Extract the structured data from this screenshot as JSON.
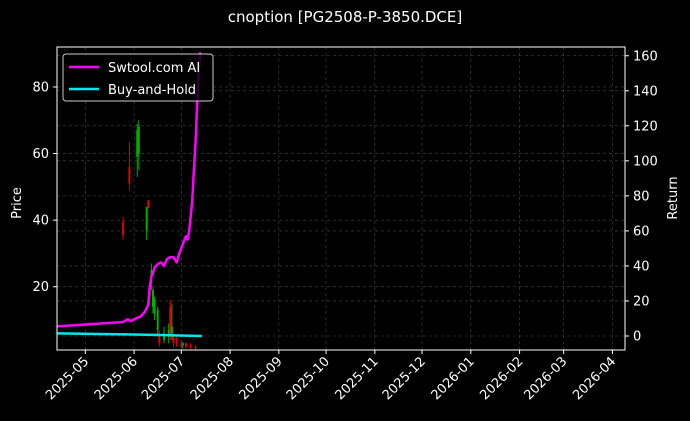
{
  "chart_data": {
    "type": "line",
    "title": "cnoption [PG2508-P-3850.DCE]",
    "ylabel": "Price",
    "y2label": "Return",
    "ylim": [
      1,
      92
    ],
    "y2lim": [
      -8,
      165
    ],
    "xlim": [
      "2025-04-13",
      "2026-04-09"
    ],
    "yticks": [
      20,
      40,
      60,
      80
    ],
    "y2ticks": [
      0,
      20,
      40,
      60,
      80,
      100,
      120,
      140,
      160
    ],
    "xticks": [
      "2025-05-01",
      "2025-06-01",
      "2025-07-01",
      "2025-08-01",
      "2025-09-01",
      "2025-10-01",
      "2025-11-01",
      "2025-12-01",
      "2026-01-01",
      "2026-02-01",
      "2026-03-01",
      "2026-04-01"
    ],
    "xtick_labels": [
      "2025-05",
      "2025-06",
      "2025-07",
      "2025-08",
      "2025-09",
      "2025-10",
      "2025-11",
      "2025-12",
      "2026-01",
      "2026-02",
      "2026-03",
      "2026-04"
    ],
    "grid": true,
    "legend_position": "top-left",
    "series": [
      {
        "name": "Swtool.com AI",
        "color": "#ff00ff",
        "axis": "right",
        "x": [
          "2025-04-13",
          "2025-05-25",
          "2025-05-28",
          "2025-05-30",
          "2025-06-02",
          "2025-06-05",
          "2025-06-08",
          "2025-06-10",
          "2025-06-11",
          "2025-06-12",
          "2025-06-13",
          "2025-06-14",
          "2025-06-16",
          "2025-06-18",
          "2025-06-20",
          "2025-06-22",
          "2025-06-24",
          "2025-06-26",
          "2025-06-28",
          "2025-06-30",
          "2025-07-01",
          "2025-07-03",
          "2025-07-04",
          "2025-07-05",
          "2025-07-06",
          "2025-07-07",
          "2025-07-08",
          "2025-07-09",
          "2025-07-10",
          "2025-07-11",
          "2025-07-12",
          "2025-07-13"
        ],
        "y": [
          5.5,
          8,
          9.5,
          8.5,
          10,
          11,
          14,
          18,
          28,
          34,
          36,
          39,
          41,
          42,
          40,
          44,
          45,
          45,
          42,
          48,
          50,
          55,
          57,
          55,
          60,
          68,
          78,
          95,
          110,
          130,
          150,
          162
        ]
      },
      {
        "name": "Buy-and-Hold",
        "color": "#00e5ee",
        "axis": "right",
        "x": [
          "2025-04-13",
          "2025-05-20",
          "2025-06-20",
          "2025-07-14"
        ],
        "y": [
          1.5,
          1,
          0.5,
          0
        ]
      }
    ],
    "candles": [
      {
        "x": "2025-05-25",
        "open": 39.5,
        "close": 35.5,
        "high": 41,
        "low": 34
      },
      {
        "x": "2025-05-29",
        "open": 56,
        "close": 51,
        "high": 63.5,
        "low": 49
      },
      {
        "x": "2025-06-03",
        "open": 59,
        "close": 67,
        "high": 69,
        "low": 53
      },
      {
        "x": "2025-06-04",
        "open": 60,
        "close": 68,
        "high": 70,
        "low": 55
      },
      {
        "x": "2025-06-09",
        "open": 37,
        "close": 44,
        "high": 44,
        "low": 34
      },
      {
        "x": "2025-06-10",
        "open": 46,
        "close": 43.5,
        "high": 46,
        "low": 43.5
      },
      {
        "x": "2025-06-12",
        "open": 21,
        "close": 25,
        "high": 27,
        "low": 19
      },
      {
        "x": "2025-06-13",
        "open": 14,
        "close": 19,
        "high": 20,
        "low": 12
      },
      {
        "x": "2025-06-14",
        "open": 12,
        "close": 16,
        "high": 17,
        "low": 10
      },
      {
        "x": "2025-06-16",
        "open": 7,
        "close": 13,
        "high": 14,
        "low": 5
      },
      {
        "x": "2025-06-17",
        "open": 6,
        "close": 3,
        "high": 7,
        "low": 2
      },
      {
        "x": "2025-06-20",
        "open": 4,
        "close": 6,
        "high": 8,
        "low": 3
      },
      {
        "x": "2025-06-23",
        "open": 5,
        "close": 7,
        "high": 9,
        "low": 3
      },
      {
        "x": "2025-06-24",
        "open": 14,
        "close": 5,
        "high": 16,
        "low": 4
      },
      {
        "x": "2025-06-25",
        "open": 6,
        "close": 8,
        "high": 15,
        "low": 4
      },
      {
        "x": "2025-06-26",
        "open": 5,
        "close": 3,
        "high": 6,
        "low": 2
      },
      {
        "x": "2025-06-28",
        "open": 4,
        "close": 3,
        "high": 5,
        "low": 2
      },
      {
        "x": "2025-07-01",
        "open": 3,
        "close": 2,
        "high": 4,
        "low": 1.5
      },
      {
        "x": "2025-07-02",
        "open": 2.5,
        "close": 3,
        "high": 3.5,
        "low": 1.5
      },
      {
        "x": "2025-07-04",
        "open": 3,
        "close": 2,
        "high": 3.2,
        "low": 1.5
      },
      {
        "x": "2025-07-07",
        "open": 2.5,
        "close": 1.8,
        "high": 3,
        "low": 1.3
      },
      {
        "x": "2025-07-10",
        "open": 2,
        "close": 1.5,
        "high": 2.5,
        "low": 1.2
      }
    ]
  }
}
